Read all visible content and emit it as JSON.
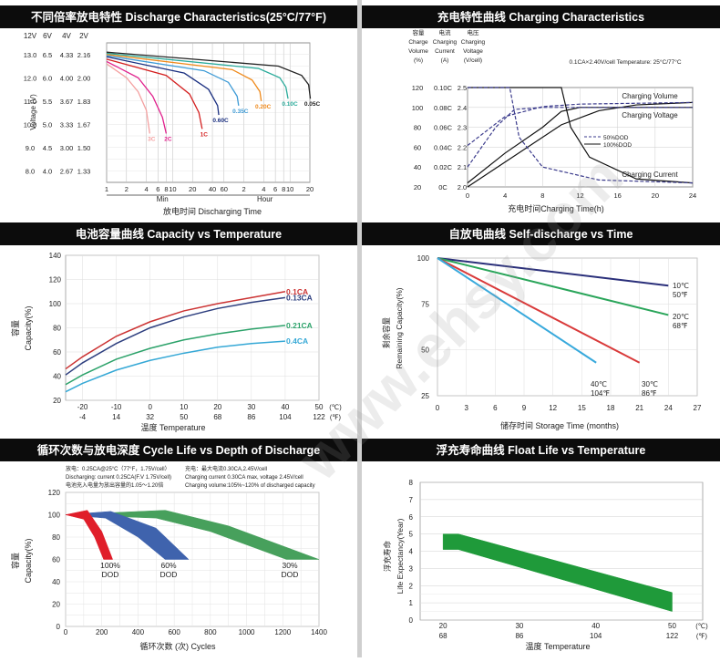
{
  "watermark": "www.ehsy.com",
  "panels": {
    "discharge": {
      "title": "不同倍率放电特性 Discharge Characteristics(25°C/77°F)",
      "col_heads": [
        "12V",
        "6V",
        "4V",
        "2V"
      ],
      "voltage_rows": [
        [
          "13.0",
          "6.5",
          "4.33",
          "2.16"
        ],
        [
          "12.0",
          "6.0",
          "4.00",
          "2.00"
        ],
        [
          "11.0",
          "5.5",
          "3.67",
          "1.83"
        ],
        [
          "10.0",
          "5.0",
          "3.33",
          "1.67"
        ],
        [
          "9.0",
          "4.5",
          "3.00",
          "1.50"
        ],
        [
          "8.0",
          "4.0",
          "2.67",
          "1.33"
        ]
      ],
      "ylabel": "Voltage (V)",
      "x_ticks": [
        "1",
        "2",
        "4",
        "6",
        "8",
        "10",
        "20",
        "40",
        "60",
        "2",
        "4",
        "6",
        "8",
        "10",
        "20"
      ],
      "min_label": "Min",
      "hour_label": "Hour",
      "xlabel": "放电时间 Discharging Time",
      "chart_data": {
        "type": "line",
        "x_units": "minutes (log scale), ticks from 1 min to 20 h",
        "y_axis": "Voltage per 12V block",
        "ylim": [
          7.5,
          13.5
        ],
        "series": [
          {
            "name": "3C",
            "color": "#f4a0a0",
            "points": [
              [
                1,
                12.6
              ],
              [
                2,
                12.0
              ],
              [
                3,
                11.4
              ],
              [
                4,
                10.6
              ],
              [
                4.5,
                9.6
              ]
            ]
          },
          {
            "name": "2C",
            "color": "#e0208c",
            "points": [
              [
                1,
                12.7
              ],
              [
                3,
                12.0
              ],
              [
                5,
                11.2
              ],
              [
                7,
                10.3
              ],
              [
                8,
                9.6
              ]
            ]
          },
          {
            "name": "1C",
            "color": "#d42020",
            "points": [
              [
                1,
                12.8
              ],
              [
                8,
                12.1
              ],
              [
                18,
                11.3
              ],
              [
                25,
                10.5
              ],
              [
                28,
                9.8
              ]
            ]
          },
          {
            "name": "0.60C",
            "color": "#1a2f80",
            "points": [
              [
                1,
                12.9
              ],
              [
                15,
                12.2
              ],
              [
                35,
                11.5
              ],
              [
                48,
                10.8
              ],
              [
                50,
                10.4
              ]
            ]
          },
          {
            "name": "0.35C",
            "color": "#3e9bd6",
            "points": [
              [
                1,
                12.95
              ],
              [
                30,
                12.3
              ],
              [
                70,
                11.8
              ],
              [
                95,
                11.2
              ],
              [
                100,
                10.8
              ]
            ]
          },
          {
            "name": "0.20C",
            "color": "#ef8a1c",
            "points": [
              [
                1,
                13.0
              ],
              [
                80,
                12.35
              ],
              [
                160,
                11.9
              ],
              [
                210,
                11.4
              ],
              [
                220,
                11.0
              ]
            ]
          },
          {
            "name": "0.10C",
            "color": "#2bab9b",
            "points": [
              [
                1,
                13.05
              ],
              [
                200,
                12.4
              ],
              [
                420,
                12.0
              ],
              [
                520,
                11.6
              ],
              [
                560,
                11.1
              ]
            ]
          },
          {
            "name": "0.05C",
            "color": "#222222",
            "points": [
              [
                1,
                13.1
              ],
              [
                400,
                12.5
              ],
              [
                900,
                12.1
              ],
              [
                1150,
                11.7
              ],
              [
                1220,
                11.1
              ]
            ]
          }
        ]
      }
    },
    "charging": {
      "title": "充电特性曲线 Charging Characteristics",
      "head_capacity": [
        "容量",
        "Charge",
        "Volume",
        "(%)"
      ],
      "head_current": [
        "电流",
        "Charging",
        "Current",
        "(A)"
      ],
      "head_voltage": [
        "电压",
        "Charging",
        "Voltage",
        "(V/cell)"
      ],
      "condition": "0.1CA×2.40V/cell  Temperature: 25°C/77°C",
      "capacity_ticks": [
        "120",
        "100",
        "80",
        "60",
        "40",
        "20"
      ],
      "current_ticks": [
        "0.10C",
        "0.08C",
        "0.06C",
        "0.04C",
        "0.02C",
        "0C"
      ],
      "voltage_ticks": [
        "2.5",
        "2.4",
        "2.3",
        "2.2",
        "2.1",
        "2.0"
      ],
      "x_ticks": [
        "0",
        "4",
        "8",
        "12",
        "16",
        "20",
        "24"
      ],
      "xlabel": "充电时间Charging Time(h)",
      "label_volume": "Charging Volume",
      "label_voltage": "Charging Voltage",
      "label_current": "Charging Current",
      "legend_50": "50%DOD",
      "legend_100": "100%DOD",
      "chart_data": {
        "type": "line",
        "x_units": "hours",
        "xlim": [
          0,
          24
        ],
        "series": [
          {
            "name": "Charging Volume",
            "dod": "100%DOD",
            "axis": "capacity %",
            "points": [
              [
                0,
                0
              ],
              [
                4,
                30
              ],
              [
                10,
                75
              ],
              [
                14,
                92
              ],
              [
                18,
                99
              ],
              [
                24,
                102
              ]
            ]
          },
          {
            "name": "Charging Volume",
            "dod": "50%DOD",
            "axis": "capacity %",
            "points": [
              [
                0,
                50
              ],
              [
                4,
                85
              ],
              [
                8,
                97
              ],
              [
                12,
                100
              ],
              [
                24,
                102
              ]
            ]
          },
          {
            "name": "Charging Voltage",
            "dod": "100%DOD",
            "axis": "V/cell",
            "points": [
              [
                0,
                2.02
              ],
              [
                4,
                2.17
              ],
              [
                8,
                2.3
              ],
              [
                10,
                2.38
              ],
              [
                12,
                2.4
              ],
              [
                24,
                2.4
              ]
            ]
          },
          {
            "name": "Charging Voltage",
            "dod": "50%DOD",
            "axis": "V/cell",
            "points": [
              [
                0,
                2.1
              ],
              [
                3,
                2.3
              ],
              [
                5,
                2.39
              ],
              [
                8,
                2.4
              ],
              [
                24,
                2.4
              ]
            ]
          },
          {
            "name": "Charging Current",
            "dod": "100%DOD",
            "axis": "CA",
            "points": [
              [
                0,
                0.1
              ],
              [
                10,
                0.1
              ],
              [
                11,
                0.06
              ],
              [
                13,
                0.03
              ],
              [
                18,
                0.008
              ],
              [
                24,
                0.004
              ]
            ]
          },
          {
            "name": "Charging Current",
            "dod": "50%DOD",
            "axis": "CA",
            "points": [
              [
                0,
                0.1
              ],
              [
                4.5,
                0.1
              ],
              [
                5.5,
                0.05
              ],
              [
                8,
                0.02
              ],
              [
                14,
                0.007
              ],
              [
                24,
                0.004
              ]
            ]
          }
        ]
      }
    },
    "capacity_temp": {
      "title": "电池容量曲线 Capacity vs Temperature",
      "y_ticks": [
        "140",
        "120",
        "100",
        "80",
        "60",
        "40",
        "20"
      ],
      "ylabel_cn": "容量",
      "ylabel_en": "Capacity(%)",
      "x_ticks_c": [
        "-20",
        "-10",
        "0",
        "10",
        "20",
        "30",
        "40",
        "50"
      ],
      "x_ticks_f": [
        "-4",
        "14",
        "32",
        "50",
        "68",
        "86",
        "104",
        "122"
      ],
      "unit_c": "(℃)",
      "unit_f": "(℉)",
      "xlabel": "温度 Temperature",
      "chart_data": {
        "type": "line",
        "x": [
          -25,
          -20,
          -10,
          0,
          10,
          20,
          30,
          40
        ],
        "series": [
          {
            "name": "0.1CA",
            "color": "#cc3333",
            "values": [
              46,
              56,
              73,
              85,
              94,
              100,
              105,
              110
            ]
          },
          {
            "name": "0.13CA",
            "color": "#2e3f7f",
            "values": [
              41,
              51,
              67,
              80,
              89,
              96,
              101,
              105
            ]
          },
          {
            "name": "0.21CA",
            "color": "#2ca26a",
            "values": [
              33,
              41,
              54,
              63,
              70,
              75,
              79,
              82
            ]
          },
          {
            "name": "0.4CA",
            "color": "#35a8d6",
            "values": [
              27,
              34,
              45,
              53,
              59,
              64,
              67,
              69
            ]
          }
        ],
        "ylim": [
          20,
          140
        ]
      }
    },
    "self_discharge": {
      "title": "自放电曲线 Self-discharge vs Time",
      "y_ticks": [
        "100",
        "75",
        "50",
        "25"
      ],
      "ylabel_cn": "剩余容量",
      "ylabel_en": "Remaining Capacity(%)",
      "x_ticks": [
        "0",
        "3",
        "6",
        "9",
        "12",
        "15",
        "18",
        "21",
        "24",
        "27"
      ],
      "xlabel": "储存时间 Storage Time (months)",
      "chart_data": {
        "type": "line",
        "x_units": "months",
        "series": [
          {
            "name": "10℃ 50℉",
            "color": "#2a2f7a",
            "points": [
              [
                0,
                100
              ],
              [
                24,
                85
              ]
            ]
          },
          {
            "name": "20℃ 68℉",
            "color": "#2aa55a",
            "points": [
              [
                0,
                100
              ],
              [
                24,
                69
              ]
            ]
          },
          {
            "name": "30℃ 86℉",
            "color": "#d93a3a",
            "points": [
              [
                0,
                100
              ],
              [
                21,
                43
              ]
            ]
          },
          {
            "name": "40℃ 104℉",
            "color": "#38a9dc",
            "points": [
              [
                0,
                100
              ],
              [
                16.5,
                43
              ]
            ]
          }
        ],
        "ylim": [
          25,
          100
        ],
        "xlim": [
          0,
          27
        ]
      },
      "labels": [
        {
          "c": "10℃",
          "f": "50℉"
        },
        {
          "c": "20℃",
          "f": "68℉"
        },
        {
          "c": "30℃",
          "f": "86℉"
        },
        {
          "c": "40℃",
          "f": "104℉"
        }
      ]
    },
    "cycle_life": {
      "title": "循环次数与放电深度 Cycle Life vs Depth of Discharge",
      "notes": [
        "放电：0.25CA@25°C（77°F，1.75V/cell）",
        "Discharging: current 0.25CA(F.V 1.75V/cell)",
        "电池充入电量为放出容量的1.05～1.20倍",
        "充电：最大电流0.30CA,2.45V/cell",
        "Charging current 0.30CA max, voltage 2.45V/cell",
        "Charging volume:105%~120% of discharged capacity"
      ],
      "y_ticks": [
        "120",
        "100",
        "80",
        "60",
        "40",
        "20",
        "0"
      ],
      "ylabel_cn": "容量",
      "ylabel_en": "Capacity(%)",
      "x_ticks": [
        "0",
        "200",
        "400",
        "600",
        "800",
        "1000",
        "1200",
        "1400"
      ],
      "xlabel": "循环次数 (次) Cycles",
      "chart_data": {
        "type": "area",
        "x_units": "cycles",
        "ylim": [
          0,
          120
        ],
        "xlim": [
          0,
          1400
        ],
        "bands": [
          {
            "name": "100% DOD",
            "color": "#e01e2a",
            "upper": [
              [
                0,
                100
              ],
              [
                120,
                104
              ],
              [
                200,
                85
              ],
              [
                260,
                60
              ]
            ],
            "lower": [
              [
                0,
                100
              ],
              [
                100,
                96
              ],
              [
                160,
                80
              ],
              [
                210,
                60
              ]
            ]
          },
          {
            "name": "60% DOD",
            "color": "#3f63ad",
            "upper": [
              [
                0,
                100
              ],
              [
                250,
                103
              ],
              [
                500,
                88
              ],
              [
                680,
                60
              ]
            ],
            "lower": [
              [
                0,
                100
              ],
              [
                220,
                97
              ],
              [
                400,
                80
              ],
              [
                550,
                60
              ]
            ]
          },
          {
            "name": "30% DOD",
            "color": "#47a05c",
            "upper": [
              [
                0,
                100
              ],
              [
                550,
                104
              ],
              [
                900,
                90
              ],
              [
                1400,
                60
              ]
            ],
            "lower": [
              [
                0,
                100
              ],
              [
                500,
                97
              ],
              [
                800,
                85
              ],
              [
                1220,
                60
              ]
            ]
          }
        ]
      },
      "labels": [
        {
          "pct": "100%",
          "dod": "DOD"
        },
        {
          "pct": "60%",
          "dod": "DOD"
        },
        {
          "pct": "30%",
          "dod": "DOD"
        }
      ]
    },
    "float_life": {
      "title": "浮充寿命曲线 Float Life vs Temperature",
      "y_ticks": [
        "8",
        "7",
        "6",
        "5",
        "4",
        "3",
        "2",
        "1",
        "0"
      ],
      "ylabel_cn": "浮充寿命",
      "ylabel_en": "Life Expectancy(Year)",
      "x_ticks_c": [
        "20",
        "30",
        "40",
        "50"
      ],
      "x_ticks_f": [
        "68",
        "86",
        "104",
        "122"
      ],
      "unit_c": "(℃)",
      "unit_f": "(℉)",
      "xlabel": "温度 Temperature",
      "chart_data": {
        "type": "area",
        "x_units": "°C",
        "ylim": [
          0,
          8
        ],
        "xlim": [
          20,
          52
        ],
        "band": {
          "color": "#1f9a3a",
          "upper": [
            [
              20,
              5
            ],
            [
              22,
              5
            ],
            [
              50,
              1.6
            ]
          ],
          "lower": [
            [
              20,
              4.1
            ],
            [
              22,
              4.1
            ],
            [
              50,
              0.5
            ]
          ]
        }
      }
    }
  }
}
